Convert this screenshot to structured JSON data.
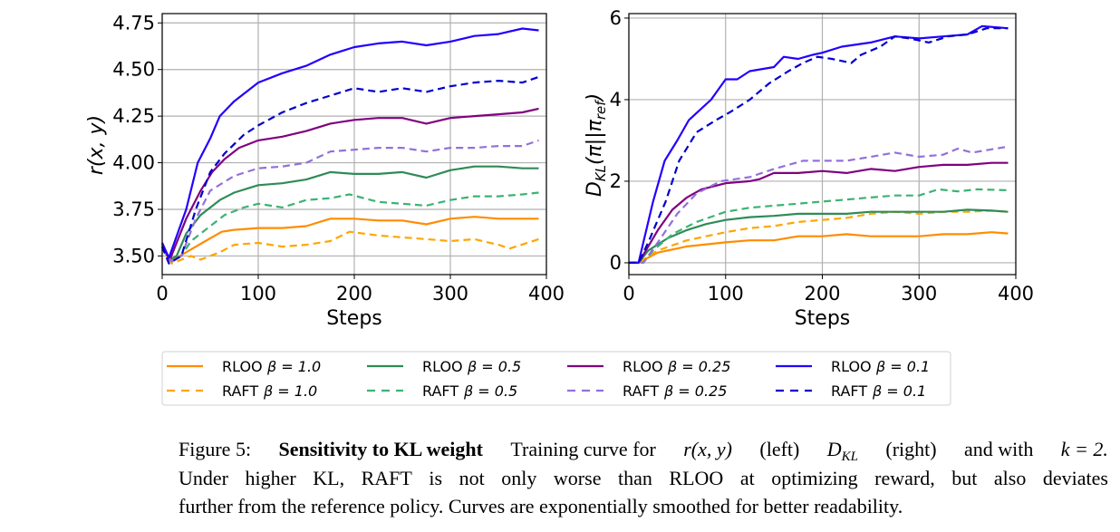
{
  "chart_data": [
    {
      "type": "line",
      "title": "",
      "xlabel": "Steps",
      "ylabel": "r(x, y)",
      "xlim": [
        0,
        400
      ],
      "ylim": [
        3.4,
        4.8
      ],
      "xticks": [
        "0",
        "100",
        "200",
        "300",
        "400"
      ],
      "xtick_values": [
        0,
        100,
        200,
        300,
        400
      ],
      "yticks": [
        "3.50",
        "3.75",
        "4.00",
        "4.25",
        "4.50",
        "4.75"
      ],
      "ytick_values": [
        3.5,
        3.75,
        4.0,
        4.25,
        4.5,
        4.75
      ],
      "grid": true,
      "series": [
        {
          "name": "RLOO β=1.0",
          "color": "#ff8c00",
          "dash": false,
          "x": [
            0,
            8,
            25,
            45,
            62,
            75,
            100,
            125,
            150,
            175,
            200,
            225,
            250,
            275,
            300,
            325,
            350,
            375,
            392
          ],
          "y": [
            3.55,
            3.47,
            3.52,
            3.58,
            3.63,
            3.64,
            3.65,
            3.65,
            3.66,
            3.7,
            3.7,
            3.69,
            3.69,
            3.67,
            3.7,
            3.71,
            3.7,
            3.7,
            3.7
          ]
        },
        {
          "name": "RAFT β=1.0",
          "color": "#ffa500",
          "dash": true,
          "x": [
            0,
            10,
            30,
            40,
            60,
            75,
            100,
            125,
            150,
            175,
            195,
            225,
            250,
            275,
            300,
            325,
            350,
            362,
            392
          ],
          "y": [
            3.54,
            3.46,
            3.5,
            3.48,
            3.52,
            3.56,
            3.57,
            3.55,
            3.56,
            3.58,
            3.63,
            3.61,
            3.6,
            3.59,
            3.58,
            3.59,
            3.56,
            3.54,
            3.59
          ]
        },
        {
          "name": "RLOO β=0.5",
          "color": "#2e8b57",
          "dash": false,
          "x": [
            0,
            8,
            15,
            25,
            40,
            60,
            75,
            100,
            125,
            150,
            175,
            200,
            225,
            250,
            275,
            300,
            325,
            350,
            375,
            392
          ],
          "y": [
            3.55,
            3.48,
            3.5,
            3.62,
            3.72,
            3.8,
            3.84,
            3.88,
            3.89,
            3.91,
            3.95,
            3.94,
            3.94,
            3.95,
            3.92,
            3.96,
            3.98,
            3.98,
            3.97,
            3.97
          ]
        },
        {
          "name": "RAFT β=0.5",
          "color": "#3cb371",
          "dash": true,
          "x": [
            0,
            10,
            20,
            30,
            50,
            65,
            85,
            100,
            125,
            150,
            175,
            195,
            225,
            250,
            275,
            300,
            325,
            350,
            375,
            392
          ],
          "y": [
            3.54,
            3.47,
            3.5,
            3.58,
            3.66,
            3.72,
            3.76,
            3.78,
            3.76,
            3.8,
            3.81,
            3.83,
            3.79,
            3.78,
            3.77,
            3.8,
            3.82,
            3.82,
            3.83,
            3.84
          ]
        },
        {
          "name": "RLOO β=0.25",
          "color": "#800080",
          "dash": false,
          "x": [
            0,
            8,
            25,
            40,
            52,
            65,
            80,
            100,
            125,
            150,
            175,
            200,
            225,
            250,
            275,
            300,
            325,
            350,
            375,
            392
          ],
          "y": [
            3.55,
            3.48,
            3.7,
            3.85,
            3.95,
            4.02,
            4.08,
            4.12,
            4.14,
            4.17,
            4.21,
            4.23,
            4.24,
            4.24,
            4.21,
            4.24,
            4.25,
            4.26,
            4.27,
            4.29
          ]
        },
        {
          "name": "RAFT β=0.25",
          "color": "#9370db",
          "dash": true,
          "x": [
            0,
            10,
            20,
            35,
            50,
            75,
            100,
            125,
            150,
            175,
            200,
            225,
            250,
            275,
            300,
            325,
            350,
            375,
            392
          ],
          "y": [
            3.54,
            3.47,
            3.5,
            3.7,
            3.85,
            3.93,
            3.97,
            3.98,
            4.0,
            4.06,
            4.07,
            4.08,
            4.08,
            4.06,
            4.08,
            4.08,
            4.09,
            4.09,
            4.12
          ]
        },
        {
          "name": "RLOO β=0.1",
          "color": "#2200ff",
          "dash": false,
          "x": [
            0,
            7,
            25,
            37,
            50,
            60,
            75,
            100,
            125,
            150,
            175,
            200,
            225,
            250,
            275,
            300,
            325,
            350,
            375,
            392
          ],
          "y": [
            3.57,
            3.49,
            3.75,
            4.0,
            4.13,
            4.25,
            4.33,
            4.43,
            4.48,
            4.52,
            4.58,
            4.62,
            4.64,
            4.65,
            4.63,
            4.65,
            4.68,
            4.69,
            4.72,
            4.71
          ]
        },
        {
          "name": "RAFT β=0.1",
          "color": "#0000cd",
          "dash": true,
          "x": [
            0,
            7,
            20,
            35,
            50,
            65,
            85,
            100,
            125,
            150,
            175,
            200,
            225,
            250,
            275,
            300,
            325,
            350,
            375,
            392
          ],
          "y": [
            3.55,
            3.46,
            3.5,
            3.75,
            3.95,
            4.05,
            4.15,
            4.2,
            4.27,
            4.32,
            4.36,
            4.4,
            4.38,
            4.4,
            4.38,
            4.41,
            4.43,
            4.44,
            4.43,
            4.46
          ]
        }
      ]
    },
    {
      "type": "line",
      "title": "",
      "xlabel": "Steps",
      "ylabel": "D_KL(π||π_ref)",
      "ylabel_parts": {
        "D": "D",
        "sub": "KL",
        "mid": "(π||π",
        "sub2": "ref",
        "end": ")"
      },
      "xlim": [
        0,
        400
      ],
      "ylim": [
        -0.29,
        6.11
      ],
      "xticks": [
        "0",
        "100",
        "200",
        "300",
        "400"
      ],
      "xtick_values": [
        0,
        100,
        200,
        300,
        400
      ],
      "yticks": [
        "0",
        "2",
        "4",
        "6"
      ],
      "ytick_values": [
        0,
        2,
        4,
        6
      ],
      "grid": true,
      "series": [
        {
          "name": "RLOO β=1.0",
          "color": "#ff8c00",
          "dash": false,
          "x": [
            0,
            10,
            30,
            60,
            100,
            125,
            150,
            175,
            200,
            225,
            250,
            275,
            300,
            325,
            350,
            375,
            392
          ],
          "y": [
            0,
            0,
            0.25,
            0.4,
            0.5,
            0.55,
            0.55,
            0.65,
            0.65,
            0.7,
            0.65,
            0.65,
            0.65,
            0.7,
            0.7,
            0.75,
            0.72
          ]
        },
        {
          "name": "RAFT β=1.0",
          "color": "#ffa500",
          "dash": true,
          "x": [
            0,
            10,
            30,
            60,
            100,
            125,
            150,
            175,
            200,
            225,
            250,
            275,
            300,
            325,
            350,
            375,
            392
          ],
          "y": [
            0,
            0,
            0.3,
            0.55,
            0.75,
            0.85,
            0.9,
            1.0,
            1.05,
            1.1,
            1.2,
            1.25,
            1.2,
            1.25,
            1.25,
            1.28,
            1.25
          ]
        },
        {
          "name": "RLOO β=0.5",
          "color": "#2e8b57",
          "dash": false,
          "x": [
            0,
            10,
            20,
            40,
            60,
            80,
            100,
            125,
            150,
            175,
            200,
            225,
            250,
            275,
            300,
            325,
            350,
            375,
            392
          ],
          "y": [
            0,
            0,
            0.3,
            0.6,
            0.8,
            0.95,
            1.05,
            1.12,
            1.15,
            1.2,
            1.2,
            1.2,
            1.25,
            1.25,
            1.25,
            1.25,
            1.3,
            1.28,
            1.25
          ]
        },
        {
          "name": "RAFT β=0.5",
          "color": "#3cb371",
          "dash": true,
          "x": [
            0,
            15,
            25,
            45,
            70,
            100,
            125,
            150,
            175,
            200,
            225,
            250,
            275,
            300,
            320,
            340,
            360,
            392
          ],
          "y": [
            0,
            0,
            0.3,
            0.7,
            1.0,
            1.25,
            1.35,
            1.4,
            1.45,
            1.5,
            1.55,
            1.6,
            1.65,
            1.65,
            1.8,
            1.75,
            1.8,
            1.78
          ]
        },
        {
          "name": "RLOO β=0.25",
          "color": "#800080",
          "dash": false,
          "x": [
            0,
            10,
            20,
            30,
            45,
            60,
            75,
            100,
            125,
            135,
            150,
            175,
            200,
            225,
            250,
            275,
            300,
            325,
            350,
            375,
            392
          ],
          "y": [
            0,
            0,
            0.4,
            0.8,
            1.3,
            1.6,
            1.8,
            1.95,
            2.0,
            2.05,
            2.2,
            2.2,
            2.25,
            2.2,
            2.3,
            2.25,
            2.35,
            2.4,
            2.4,
            2.45,
            2.45
          ]
        },
        {
          "name": "RAFT β=0.25",
          "color": "#9370db",
          "dash": true,
          "x": [
            0,
            15,
            30,
            50,
            70,
            95,
            125,
            150,
            180,
            200,
            225,
            250,
            275,
            300,
            325,
            340,
            355,
            392
          ],
          "y": [
            0,
            0,
            0.5,
            1.2,
            1.7,
            2.0,
            2.1,
            2.3,
            2.5,
            2.5,
            2.5,
            2.6,
            2.7,
            2.6,
            2.65,
            2.8,
            2.7,
            2.85
          ]
        },
        {
          "name": "RLOO β=0.1",
          "color": "#2200ff",
          "dash": false,
          "x": [
            0,
            10,
            15,
            25,
            37,
            50,
            62,
            85,
            100,
            112,
            125,
            150,
            160,
            175,
            190,
            200,
            220,
            250,
            275,
            300,
            325,
            350,
            365,
            392
          ],
          "y": [
            0,
            0,
            0.5,
            1.5,
            2.5,
            3.0,
            3.5,
            4.0,
            4.5,
            4.5,
            4.7,
            4.8,
            5.05,
            5.0,
            5.1,
            5.15,
            5.3,
            5.4,
            5.55,
            5.5,
            5.55,
            5.6,
            5.8,
            5.75
          ]
        },
        {
          "name": "RAFT β=0.1",
          "color": "#0000cd",
          "dash": true,
          "x": [
            0,
            10,
            20,
            38,
            52,
            70,
            90,
            105,
            125,
            145,
            165,
            180,
            195,
            210,
            230,
            240,
            260,
            275,
            290,
            310,
            330,
            350,
            370,
            392
          ],
          "y": [
            0,
            0,
            0.5,
            1.5,
            2.5,
            3.2,
            3.5,
            3.7,
            4.0,
            4.4,
            4.7,
            4.9,
            5.05,
            5.0,
            4.9,
            5.1,
            5.3,
            5.55,
            5.5,
            5.4,
            5.55,
            5.6,
            5.75,
            5.75
          ]
        }
      ]
    }
  ],
  "legend": {
    "placement": "bottom",
    "entries": [
      {
        "method": "RLOO",
        "beta": "β = 1.0",
        "color": "#ff8c00",
        "dash": false
      },
      {
        "method": "RAFT",
        "beta": "β = 1.0",
        "color": "#ffa500",
        "dash": true
      },
      {
        "method": "RLOO",
        "beta": "β = 0.5",
        "color": "#2e8b57",
        "dash": false
      },
      {
        "method": "RAFT",
        "beta": "β = 0.5",
        "color": "#3cb371",
        "dash": true
      },
      {
        "method": "RLOO",
        "beta": "β = 0.25",
        "color": "#800080",
        "dash": false
      },
      {
        "method": "RAFT",
        "beta": "β = 0.25",
        "color": "#9370db",
        "dash": true
      },
      {
        "method": "RLOO",
        "beta": "β = 0.1",
        "color": "#2200ff",
        "dash": false
      },
      {
        "method": "RAFT",
        "beta": "β = 0.1",
        "color": "#0000cd",
        "dash": true
      }
    ]
  },
  "caption": {
    "figure_label": "Figure 5:",
    "title": "Sensitivity to KL weight",
    "l1_a": "Training curve for",
    "l1_r": "r(x, y)",
    "l1_left": "(left)",
    "l1_D": "D",
    "l1_KL": "KL",
    "l1_right": "(right)",
    "l1_and": "and with",
    "l1_k": "k = 2.",
    "line2": "Under higher KL, RAFT is not only worse than RLOO at optimizing reward, but also deviates",
    "line3": "further from the reference policy. Curves are exponentially smoothed for better readability."
  }
}
